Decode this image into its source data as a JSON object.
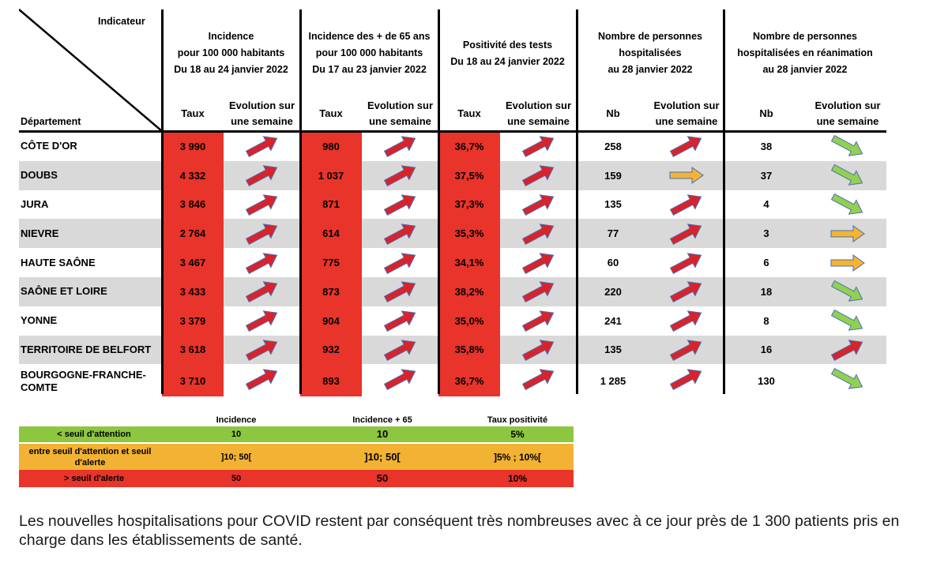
{
  "header": {
    "indicateur": "Indicateur",
    "departement": "Département",
    "groups": [
      {
        "lines": [
          "Incidence",
          "pour 100 000 habitants",
          "Du 18 au 24 janvier 2022"
        ]
      },
      {
        "lines": [
          "Incidence des + de 65 ans",
          "pour 100 000 habitants",
          "Du 17 au 23 janvier 2022"
        ]
      },
      {
        "lines": [
          "Positivité des tests",
          "Du 18 au 24 janvier 2022"
        ]
      },
      {
        "lines": [
          "Nombre de personnes",
          "hospitalisées",
          "au 28 janvier 2022"
        ]
      },
      {
        "lines": [
          "Nombre de personnes",
          "hospitalisées en réanimation",
          "au 28 janvier 2022"
        ]
      }
    ],
    "sub": [
      "Taux",
      "Evolution sur une semaine",
      "Taux",
      "Evolution sur une semaine",
      "Taux",
      "Evolution sur une semaine",
      "Nb",
      "Evolution sur une semaine",
      "Nb",
      "Evolution sur une semaine"
    ]
  },
  "colors": {
    "red": "#e8342a",
    "green": "#8dc63f",
    "orange": "#f2b233",
    "row_grey": "#d9d9d9",
    "arrow_red": "#d8232a",
    "arrow_green": "#92d050",
    "arrow_orange": "#f4b431",
    "arrow_outline": "#4a6fb5"
  },
  "rows": [
    {
      "dept": "CÔTE D'OR",
      "inc": "3 990",
      "inc_ev": "up-red",
      "inc65": "980",
      "inc65_ev": "up-red",
      "pos": "36,7%",
      "pos_ev": "up-red",
      "hosp": "258",
      "hosp_ev": "up-red",
      "rea": "38",
      "rea_ev": "down-green"
    },
    {
      "dept": "DOUBS",
      "inc": "4 332",
      "inc_ev": "up-red",
      "inc65": "1 037",
      "inc65_ev": "up-red",
      "pos": "37,5%",
      "pos_ev": "up-red",
      "hosp": "159",
      "hosp_ev": "flat-orange",
      "rea": "37",
      "rea_ev": "down-green"
    },
    {
      "dept": "JURA",
      "inc": "3 846",
      "inc_ev": "up-red",
      "inc65": "871",
      "inc65_ev": "up-red",
      "pos": "37,3%",
      "pos_ev": "up-red",
      "hosp": "135",
      "hosp_ev": "up-red",
      "rea": "4",
      "rea_ev": "down-green"
    },
    {
      "dept": "NIEVRE",
      "inc": "2 764",
      "inc_ev": "up-red",
      "inc65": "614",
      "inc65_ev": "up-red",
      "pos": "35,3%",
      "pos_ev": "up-red",
      "hosp": "77",
      "hosp_ev": "up-red",
      "rea": "3",
      "rea_ev": "flat-orange"
    },
    {
      "dept": "HAUTE SAÔNE",
      "inc": "3 467",
      "inc_ev": "up-red",
      "inc65": "775",
      "inc65_ev": "up-red",
      "pos": "34,1%",
      "pos_ev": "up-red",
      "hosp": "60",
      "hosp_ev": "up-red",
      "rea": "6",
      "rea_ev": "flat-orange"
    },
    {
      "dept": "SAÔNE ET LOIRE",
      "inc": "3 433",
      "inc_ev": "up-red",
      "inc65": "873",
      "inc65_ev": "up-red",
      "pos": "38,2%",
      "pos_ev": "up-red",
      "hosp": "220",
      "hosp_ev": "up-red",
      "rea": "18",
      "rea_ev": "down-green"
    },
    {
      "dept": "YONNE",
      "inc": "3 379",
      "inc_ev": "up-red",
      "inc65": "904",
      "inc65_ev": "up-red",
      "pos": "35,0%",
      "pos_ev": "up-red",
      "hosp": "241",
      "hosp_ev": "up-red",
      "rea": "8",
      "rea_ev": "down-green"
    },
    {
      "dept": "TERRITOIRE DE BELFORT",
      "inc": "3 618",
      "inc_ev": "up-red",
      "inc65": "932",
      "inc65_ev": "up-red",
      "pos": "35,8%",
      "pos_ev": "up-red",
      "hosp": "135",
      "hosp_ev": "up-red",
      "rea": "16",
      "rea_ev": "up-red"
    },
    {
      "dept": "BOURGOGNE-FRANCHE-COMTE",
      "dept_lines": [
        "BOURGOGNE-FRANCHE-",
        "COMTE"
      ],
      "inc": "3 710",
      "inc_ev": "up-red",
      "inc65": "893",
      "inc65_ev": "up-red",
      "pos": "36,7%",
      "pos_ev": "up-red",
      "hosp": "1 285",
      "hosp_ev": "up-red",
      "rea": "130",
      "rea_ev": "down-green"
    }
  ],
  "legend": {
    "headers": [
      "Incidence",
      "Incidence + 65",
      "Taux positivité"
    ],
    "rows": [
      {
        "label": "< seuil d'attention",
        "inc": "10",
        "inc65": "10",
        "pos": "5%"
      },
      {
        "label": "entre seuil d'attention et seuil d'alerte",
        "inc": "]10; 50[",
        "inc65": "]10; 50[",
        "pos": "]5% ; 10%["
      },
      {
        "label": "> seuil d'alerte",
        "inc": "50",
        "inc65": "50",
        "pos": "10%"
      }
    ]
  },
  "footer": {
    "text": "Les nouvelles hospitalisations pour COVID restent par conséquent très nombreuses avec à ce jour près de 1 300 patients pris en charge dans les établissements de santé."
  }
}
